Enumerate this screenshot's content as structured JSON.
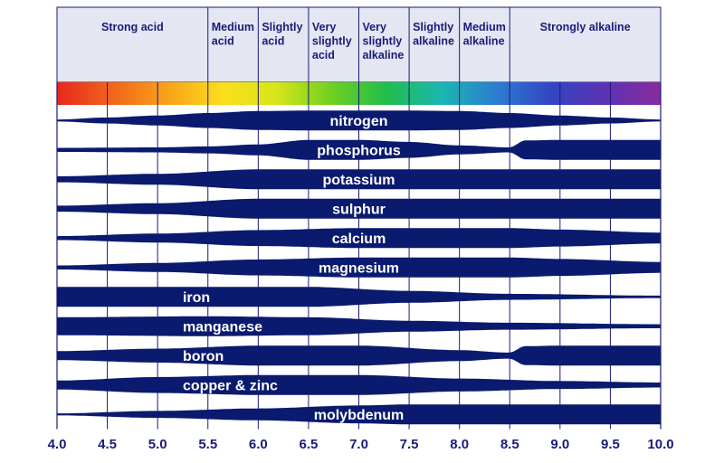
{
  "chart_data": {
    "type": "band",
    "x_ticks": [
      "4.0",
      "4.5",
      "5.0",
      "5.5",
      "6.0",
      "6.5",
      "7.0",
      "7.5",
      "8.0",
      "8.5",
      "9.0",
      "9.5",
      "10.0"
    ],
    "xlim": [
      4.0,
      10.0
    ],
    "header_bands": [
      {
        "lines": [
          "Strong acid"
        ],
        "from": 4.0,
        "to": 5.5
      },
      {
        "lines": [
          "Medium",
          "acid"
        ],
        "from": 5.5,
        "to": 6.0
      },
      {
        "lines": [
          "Slightly",
          "acid"
        ],
        "from": 6.0,
        "to": 6.5
      },
      {
        "lines": [
          "Very",
          "slightly",
          "acid"
        ],
        "from": 6.5,
        "to": 7.0
      },
      {
        "lines": [
          "Very",
          "slightly",
          "alkaline"
        ],
        "from": 7.0,
        "to": 7.5
      },
      {
        "lines": [
          "Slightly",
          "alkaline"
        ],
        "from": 7.5,
        "to": 8.0
      },
      {
        "lines": [
          "Medium",
          "alkaline"
        ],
        "from": 8.0,
        "to": 8.5
      },
      {
        "lines": [
          "Strongly alkaline"
        ],
        "from": 8.5,
        "to": 10.0
      }
    ],
    "colors": {
      "band_fill": "#0a1a6e",
      "header_fill": "#e4e7f1",
      "grid": "#1a1a7a",
      "ph_gradient": [
        "#e8271f",
        "#f1641b",
        "#f9a21a",
        "#fddd1c",
        "#d6e61a",
        "#6fd021",
        "#21bd4a",
        "#19b8b0",
        "#2d7dd1",
        "#3345c2",
        "#5d33b2",
        "#8a2a9e"
      ]
    },
    "nutrients": [
      {
        "name": "nitrogen",
        "label_at": 7.0,
        "profile": [
          [
            4.0,
            0.1
          ],
          [
            4.5,
            0.3
          ],
          [
            5.0,
            0.5
          ],
          [
            5.5,
            0.75
          ],
          [
            6.0,
            0.95
          ],
          [
            6.5,
            1.0
          ],
          [
            7.0,
            1.0
          ],
          [
            7.5,
            1.0
          ],
          [
            8.0,
            0.95
          ],
          [
            8.5,
            0.75
          ],
          [
            9.0,
            0.5
          ],
          [
            9.5,
            0.3
          ],
          [
            10.0,
            0.1
          ]
        ]
      },
      {
        "name": "phosphorus",
        "label_at": 7.0,
        "profile": [
          [
            4.0,
            0.2
          ],
          [
            5.0,
            0.25
          ],
          [
            5.5,
            0.35
          ],
          [
            6.0,
            0.55
          ],
          [
            6.5,
            1.0
          ],
          [
            7.0,
            1.0
          ],
          [
            7.5,
            0.8
          ],
          [
            8.0,
            0.45
          ],
          [
            8.5,
            0.25
          ],
          [
            8.65,
            0.95
          ],
          [
            9.0,
            1.0
          ],
          [
            10.0,
            1.0
          ]
        ]
      },
      {
        "name": "potassium",
        "label_at": 7.0,
        "profile": [
          [
            4.0,
            0.3
          ],
          [
            5.0,
            0.55
          ],
          [
            6.0,
            1.0
          ],
          [
            10.0,
            1.0
          ]
        ]
      },
      {
        "name": "sulphur",
        "label_at": 7.0,
        "profile": [
          [
            4.0,
            0.3
          ],
          [
            5.0,
            0.55
          ],
          [
            6.0,
            1.0
          ],
          [
            10.0,
            1.0
          ]
        ]
      },
      {
        "name": "calcium",
        "label_at": 7.0,
        "profile": [
          [
            4.0,
            0.2
          ],
          [
            5.0,
            0.45
          ],
          [
            6.0,
            0.8
          ],
          [
            7.0,
            1.0
          ],
          [
            8.5,
            1.0
          ],
          [
            9.0,
            0.85
          ],
          [
            10.0,
            0.55
          ]
        ]
      },
      {
        "name": "magnesium",
        "label_at": 7.0,
        "profile": [
          [
            4.0,
            0.2
          ],
          [
            5.0,
            0.45
          ],
          [
            6.0,
            0.8
          ],
          [
            7.0,
            1.0
          ],
          [
            8.5,
            1.0
          ],
          [
            9.0,
            0.85
          ],
          [
            10.0,
            0.55
          ]
        ]
      },
      {
        "name": "iron",
        "label_at": 5.25,
        "profile": [
          [
            4.0,
            1.0
          ],
          [
            6.5,
            1.0
          ],
          [
            7.5,
            0.6
          ],
          [
            8.5,
            0.3
          ],
          [
            10.0,
            0.12
          ]
        ]
      },
      {
        "name": "manganese",
        "label_at": 5.25,
        "profile": [
          [
            4.0,
            0.9
          ],
          [
            5.5,
            1.0
          ],
          [
            6.5,
            0.9
          ],
          [
            7.5,
            0.55
          ],
          [
            8.5,
            0.35
          ],
          [
            10.0,
            0.2
          ]
        ]
      },
      {
        "name": "boron",
        "label_at": 5.25,
        "profile": [
          [
            4.0,
            0.45
          ],
          [
            5.0,
            0.7
          ],
          [
            6.0,
            1.0
          ],
          [
            7.0,
            1.0
          ],
          [
            8.0,
            0.55
          ],
          [
            8.5,
            0.3
          ],
          [
            8.65,
            0.95
          ],
          [
            9.0,
            1.0
          ],
          [
            10.0,
            1.0
          ]
        ]
      },
      {
        "name": "copper & zinc",
        "label_at": 5.25,
        "profile": [
          [
            4.0,
            0.45
          ],
          [
            5.0,
            0.8
          ],
          [
            6.0,
            1.0
          ],
          [
            7.0,
            1.0
          ],
          [
            8.0,
            0.65
          ],
          [
            9.0,
            0.4
          ],
          [
            10.0,
            0.25
          ]
        ]
      },
      {
        "name": "molybdenum",
        "label_at": 7.0,
        "profile": [
          [
            4.0,
            0.1
          ],
          [
            5.0,
            0.35
          ],
          [
            6.0,
            0.6
          ],
          [
            7.0,
            0.9
          ],
          [
            7.5,
            1.0
          ],
          [
            10.0,
            1.0
          ]
        ]
      }
    ]
  }
}
